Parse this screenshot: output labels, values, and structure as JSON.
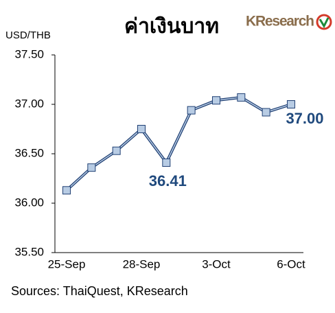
{
  "chart_data": {
    "type": "line",
    "title": "ค่าเงินบาท",
    "brand": "KResearch",
    "y_label": "USD/THB",
    "source": "Sources: ThaiQuest, KResearch",
    "categories": [
      "25-Sep",
      null,
      null,
      "28-Sep",
      null,
      null,
      "3-Oct",
      null,
      null,
      "6-Oct"
    ],
    "values": [
      36.13,
      36.36,
      36.53,
      36.75,
      36.41,
      36.94,
      37.04,
      37.07,
      36.92,
      37.0
    ],
    "value_labels": [
      null,
      null,
      null,
      null,
      "36.41",
      null,
      null,
      null,
      null,
      "37.00"
    ],
    "color": "#1f3f73",
    "marker_color": "#b8cce4",
    "label_color": "#1f497d",
    "ylim": [
      35.5,
      37.5
    ],
    "yticks": [
      {
        "value": 35.5,
        "label": "35.50"
      },
      {
        "value": 36,
        "label": "36.00"
      },
      {
        "value": 36.5,
        "label": "36.50"
      },
      {
        "value": 37,
        "label": "37.00"
      },
      {
        "value": 37.5,
        "label": "37.50"
      }
    ],
    "grid": false
  }
}
